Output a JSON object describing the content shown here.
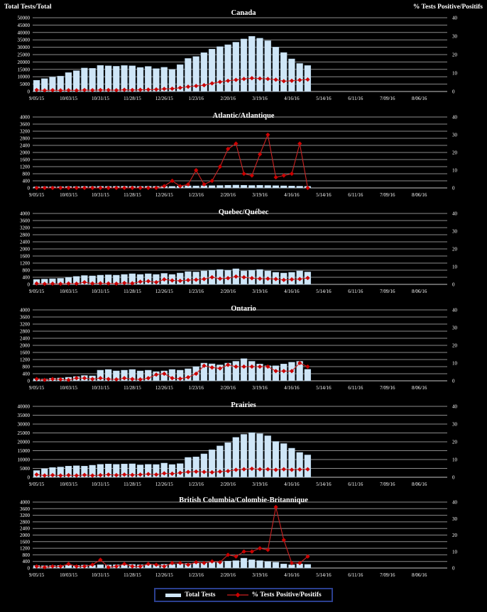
{
  "figure": {
    "description": "Weekly influenza tests and percent positive by region, 2015-16 season",
    "background": "#000000"
  },
  "axis_titles": {
    "left": "Total Tests/Total",
    "right": "% Tests Positive/Positifs"
  },
  "legend": {
    "tests_label": "Total Tests",
    "pct_label": "% Tests Positive/Positifs"
  },
  "colors": {
    "bar_fill": "#cfe6f7",
    "bar_edge": "#a8c6dd",
    "line": "#cc2222",
    "marker": "#cc0000",
    "grid": "#8c8c8c",
    "zero_line": "#c8c8c8",
    "text": "#ffffff",
    "legend_border": "#2b3f8f"
  },
  "x_axis": {
    "weeks_total": 52,
    "ticks_every": 4,
    "tick_labels": [
      "9/05/15",
      "10/03/15",
      "10/31/15",
      "11/28/15",
      "12/26/15",
      "1/23/16",
      "2/20/16",
      "3/19/16",
      "4/16/16",
      "5/14/16",
      "6/11/16",
      "7/09/16",
      "8/06/16"
    ],
    "week_ending": [
      "9/05/15",
      "9/12/15",
      "9/19/15",
      "9/26/15",
      "10/03/15",
      "10/10/15",
      "10/17/15",
      "10/24/15",
      "10/31/15",
      "11/07/15",
      "11/14/15",
      "11/21/15",
      "11/28/15",
      "12/05/15",
      "12/12/15",
      "12/19/15",
      "12/26/15",
      "1/02/16",
      "1/09/16",
      "1/16/16",
      "1/23/16",
      "1/30/16",
      "2/06/16",
      "2/13/16",
      "2/20/16",
      "2/27/16",
      "3/05/16",
      "3/12/16",
      "3/19/16",
      "3/26/16",
      "4/02/16",
      "4/09/16",
      "4/16/16",
      "4/23/16",
      "4/30/16"
    ]
  },
  "right_axis": {
    "min": 0,
    "max": 40,
    "step": 10
  },
  "chart_data": [
    {
      "type": "bar+line",
      "title": "Canada",
      "y_left": {
        "min": 0,
        "max": 50000,
        "step": 5000
      },
      "series": [
        {
          "name": "Total Tests",
          "values": [
            7600,
            8700,
            9800,
            10400,
            12800,
            14100,
            15900,
            15700,
            17700,
            17400,
            17100,
            17600,
            17400,
            16300,
            17000,
            15500,
            16400,
            14900,
            18200,
            22400,
            23700,
            26300,
            28700,
            30400,
            31700,
            33400,
            35600,
            37400,
            36100,
            34400,
            30100,
            26400,
            22100,
            19000,
            17600
          ]
        },
        {
          "name": "% Tests Positive/Positifs",
          "values": [
            0.8,
            0.6,
            0.7,
            0.6,
            0.7,
            0.6,
            0.8,
            0.7,
            0.8,
            0.8,
            0.7,
            0.9,
            0.8,
            0.9,
            1.0,
            1.1,
            1.4,
            1.5,
            2.0,
            2.6,
            3.0,
            3.4,
            4.4,
            5.2,
            5.8,
            6.3,
            6.8,
            7.2,
            7.0,
            6.8,
            6.4,
            5.6,
            5.8,
            6.2,
            6.5
          ]
        }
      ]
    },
    {
      "type": "bar+line",
      "title": "Atlantic/Atlantique",
      "y_left": {
        "min": 0,
        "max": 4000,
        "step": 400
      },
      "series": [
        {
          "name": "Total Tests",
          "values": [
            60,
            70,
            65,
            70,
            80,
            75,
            85,
            80,
            90,
            85,
            90,
            95,
            90,
            85,
            95,
            90,
            100,
            90,
            110,
            120,
            115,
            125,
            130,
            140,
            150,
            160,
            150,
            140,
            150,
            140,
            130,
            120,
            110,
            100,
            90
          ]
        },
        {
          "name": "% Tests Positive/Positifs",
          "values": [
            0,
            0,
            0,
            0,
            0,
            0,
            0,
            0,
            0,
            0,
            0,
            0,
            0,
            0,
            0,
            0,
            1,
            4,
            1,
            2,
            10,
            2,
            4,
            12,
            22,
            25,
            8,
            7,
            19,
            30,
            6,
            7,
            8,
            25,
            0
          ]
        }
      ]
    },
    {
      "type": "bar+line",
      "title": "Quebec/Québec",
      "y_left": {
        "min": 0,
        "max": 4000,
        "step": 400
      },
      "series": [
        {
          "name": "Total Tests",
          "values": [
            280,
            300,
            320,
            340,
            400,
            450,
            500,
            480,
            520,
            540,
            520,
            560,
            600,
            560,
            600,
            560,
            620,
            560,
            640,
            720,
            700,
            760,
            800,
            840,
            800,
            880,
            760,
            800,
            840,
            760,
            680,
            640,
            680,
            760,
            700
          ]
        },
        {
          "name": "% Tests Positive/Positifs",
          "values": [
            0.5,
            0.3,
            0.4,
            0.3,
            0.5,
            0.4,
            1.2,
            0.5,
            0.6,
            0.5,
            0.4,
            0.8,
            0.6,
            1.5,
            1.8,
            1.2,
            2.8,
            2.2,
            2.0,
            2.4,
            2.6,
            3.0,
            4.0,
            3.2,
            3.5,
            4.4,
            4.0,
            3.5,
            3.2,
            3.2,
            3.0,
            2.5,
            2.8,
            3.0,
            3.6
          ]
        }
      ]
    },
    {
      "type": "bar+line",
      "title": "Ontario",
      "y_left": {
        "min": 0,
        "max": 4000,
        "step": 400
      },
      "series": [
        {
          "name": "Total Tests",
          "values": [
            120,
            100,
            150,
            160,
            200,
            240,
            300,
            280,
            600,
            640,
            560,
            600,
            640,
            560,
            600,
            520,
            560,
            640,
            600,
            680,
            800,
            1000,
            960,
            900,
            1000,
            1100,
            1250,
            1100,
            950,
            850,
            850,
            950,
            1050,
            1100,
            650
          ]
        },
        {
          "name": "% Tests Positive/Positifs",
          "values": [
            1.0,
            0.5,
            1.0,
            0.8,
            0.5,
            1.5,
            1.5,
            1.0,
            1.5,
            1.0,
            0.8,
            1.5,
            1.0,
            0.8,
            1.5,
            3.5,
            4.0,
            1.5,
            1.2,
            2.0,
            4.0,
            8.5,
            7.5,
            7.0,
            9.0,
            8.0,
            8.0,
            8.0,
            8.0,
            8.0,
            5.5,
            5.5,
            5.5,
            10.0,
            8.0
          ]
        }
      ]
    },
    {
      "type": "bar+line",
      "title": "Prairies",
      "y_left": {
        "min": 0,
        "max": 40000,
        "step": 5000
      },
      "series": [
        {
          "name": "Total Tests",
          "values": [
            3800,
            4800,
            5500,
            5800,
            6300,
            6500,
            6300,
            6800,
            7300,
            7500,
            7300,
            7500,
            7600,
            7000,
            7300,
            7200,
            8000,
            7200,
            7700,
            11200,
            11500,
            13200,
            15500,
            17700,
            19500,
            22500,
            24200,
            25200,
            24600,
            23400,
            20200,
            19000,
            16400,
            14000,
            12600
          ]
        },
        {
          "name": "% Tests Positive/Positifs",
          "values": [
            1.5,
            1.0,
            1.2,
            1.0,
            1.2,
            1.0,
            1.3,
            1.0,
            1.2,
            1.5,
            1.2,
            1.5,
            1.3,
            1.5,
            1.8,
            1.5,
            2.2,
            2.0,
            2.5,
            3.0,
            3.2,
            3.0,
            2.8,
            3.2,
            3.5,
            4.2,
            4.5,
            4.8,
            4.5,
            4.5,
            4.2,
            4.5,
            4.2,
            4.4,
            4.5
          ]
        }
      ]
    },
    {
      "type": "bar+line",
      "title": "British Columbia/Colombie-Britannique",
      "y_left": {
        "min": 0,
        "max": 4000,
        "step": 400
      },
      "series": [
        {
          "name": "Total Tests",
          "values": [
            150,
            140,
            150,
            160,
            170,
            160,
            180,
            170,
            200,
            190,
            200,
            210,
            220,
            200,
            220,
            210,
            230,
            220,
            250,
            280,
            300,
            320,
            350,
            380,
            420,
            450,
            600,
            500,
            450,
            400,
            350,
            250,
            200,
            250,
            220
          ]
        },
        {
          "name": "% Tests Positive/Positifs",
          "values": [
            1,
            0.5,
            1,
            1,
            2.5,
            1,
            1,
            2,
            5,
            0.5,
            1,
            2.5,
            1,
            1,
            2.5,
            2,
            1,
            3,
            3,
            2,
            3.5,
            3,
            4,
            3.5,
            8,
            7,
            10,
            10,
            12,
            11,
            37,
            17,
            3,
            3,
            7
          ]
        }
      ]
    }
  ]
}
